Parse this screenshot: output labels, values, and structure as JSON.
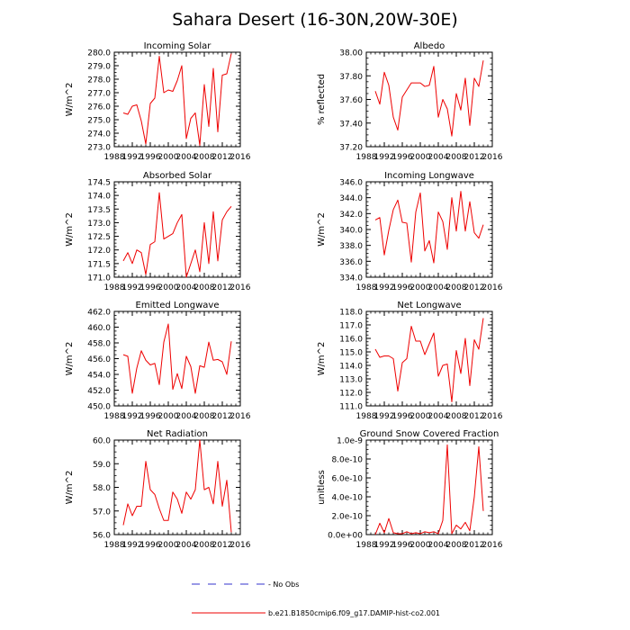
{
  "figure": {
    "title": "Sahara Desert (16-30N,20W-30E)",
    "legend": [
      {
        "label": "- No Obs",
        "style": "dashed",
        "color": "#3333cc"
      },
      {
        "label": "b.e21.B1850cmip6.f09_g17.DAMIP-hist-co2.001",
        "style": "solid",
        "color": "#ee0000"
      }
    ]
  },
  "chart_data": [
    {
      "type": "line",
      "title": "Incoming Solar",
      "ylabel": "W/m^2",
      "xlim": [
        1988,
        2016
      ],
      "ylim": [
        273.0,
        280.0
      ],
      "xticks": [
        1988,
        1992,
        1996,
        2000,
        2004,
        2008,
        2012,
        2016
      ],
      "xtick_labels": [
        "1988",
        "1992",
        "1996",
        "2000",
        "2004",
        "2008",
        "2012",
        "2016"
      ],
      "yticks": [
        273.0,
        274.0,
        275.0,
        276.0,
        277.0,
        278.0,
        279.0,
        280.0
      ],
      "ytick_labels": [
        "273.0",
        "274.0",
        "275.0",
        "276.0",
        "277.0",
        "278.0",
        "279.0",
        "280.0"
      ],
      "series": [
        {
          "color": "#ee0000",
          "x": [
            1990,
            1991,
            1992,
            1993,
            1994,
            1995,
            1996,
            1997,
            1998,
            1999,
            2000,
            2001,
            2002,
            2003,
            2004,
            2005,
            2006,
            2007,
            2008,
            2009,
            2010,
            2011,
            2012,
            2013,
            2014
          ],
          "values": [
            275.5,
            275.4,
            276.0,
            276.1,
            274.9,
            273.2,
            276.2,
            276.6,
            279.7,
            277.0,
            277.2,
            277.1,
            277.9,
            279.0,
            273.6,
            275.1,
            275.5,
            273.1,
            277.6,
            274.5,
            278.8,
            274.1,
            278.3,
            278.4,
            279.9
          ]
        }
      ]
    },
    {
      "type": "line",
      "title": "Albedo",
      "ylabel": "% reflected",
      "xlim": [
        1988,
        2016
      ],
      "ylim": [
        37.2,
        38.0
      ],
      "xticks": [
        1988,
        1992,
        1996,
        2000,
        2004,
        2008,
        2012,
        2016
      ],
      "xtick_labels": [
        "1988",
        "1992",
        "1996",
        "2000",
        "2004",
        "2008",
        "2012",
        "2016"
      ],
      "yticks": [
        37.2,
        37.4,
        37.6,
        37.8,
        38.0
      ],
      "ytick_labels": [
        "37.20",
        "37.40",
        "37.60",
        "37.80",
        "38.00"
      ],
      "series": [
        {
          "color": "#ee0000",
          "x": [
            1990,
            1991,
            1992,
            1993,
            1994,
            1995,
            1996,
            1997,
            1998,
            1999,
            2000,
            2001,
            2002,
            2003,
            2004,
            2005,
            2006,
            2007,
            2008,
            2009,
            2010,
            2011,
            2012,
            2013,
            2014
          ],
          "values": [
            37.67,
            37.56,
            37.83,
            37.72,
            37.45,
            37.34,
            37.62,
            37.68,
            37.74,
            37.74,
            37.74,
            37.71,
            37.72,
            37.88,
            37.45,
            37.6,
            37.52,
            37.29,
            37.65,
            37.51,
            37.78,
            37.38,
            37.78,
            37.71,
            37.93
          ]
        }
      ]
    },
    {
      "type": "line",
      "title": "Absorbed Solar",
      "ylabel": "W/m^2",
      "xlim": [
        1988,
        2016
      ],
      "ylim": [
        171.0,
        174.5
      ],
      "xticks": [
        1988,
        1992,
        1996,
        2000,
        2004,
        2008,
        2012,
        2016
      ],
      "xtick_labels": [
        "1988",
        "1992",
        "1996",
        "2000",
        "2004",
        "2008",
        "2012",
        "2016"
      ],
      "yticks": [
        171.0,
        171.5,
        172.0,
        172.5,
        173.0,
        173.5,
        174.0,
        174.5
      ],
      "ytick_labels": [
        "171.0",
        "171.5",
        "172.0",
        "172.5",
        "173.0",
        "173.5",
        "174.0",
        "174.5"
      ],
      "series": [
        {
          "color": "#ee0000",
          "x": [
            1990,
            1991,
            1992,
            1993,
            1994,
            1995,
            1996,
            1997,
            1998,
            1999,
            2000,
            2001,
            2002,
            2003,
            2004,
            2005,
            2006,
            2007,
            2008,
            2009,
            2010,
            2011,
            2012,
            2013,
            2014
          ],
          "values": [
            171.6,
            171.9,
            171.5,
            172.0,
            171.9,
            171.1,
            172.2,
            172.3,
            174.1,
            172.4,
            172.5,
            172.6,
            173.0,
            173.3,
            171.0,
            171.5,
            172.0,
            171.2,
            173.0,
            171.5,
            173.4,
            171.6,
            173.1,
            173.4,
            173.6
          ]
        }
      ]
    },
    {
      "type": "line",
      "title": "Incoming Longwave",
      "ylabel": "W/m^2",
      "xlim": [
        1988,
        2016
      ],
      "ylim": [
        334.0,
        346.0
      ],
      "xticks": [
        1988,
        1992,
        1996,
        2000,
        2004,
        2008,
        2012,
        2016
      ],
      "xtick_labels": [
        "1988",
        "1992",
        "1996",
        "2000",
        "2004",
        "2008",
        "2012",
        "2016"
      ],
      "yticks": [
        334.0,
        336.0,
        338.0,
        340.0,
        342.0,
        344.0,
        346.0
      ],
      "ytick_labels": [
        "334.0",
        "336.0",
        "338.0",
        "340.0",
        "342.0",
        "344.0",
        "346.0"
      ],
      "series": [
        {
          "color": "#ee0000",
          "x": [
            1990,
            1991,
            1992,
            1993,
            1994,
            1995,
            1996,
            1997,
            1998,
            1999,
            2000,
            2001,
            2002,
            2003,
            2004,
            2005,
            2006,
            2007,
            2008,
            2009,
            2010,
            2011,
            2012,
            2013,
            2014
          ],
          "values": [
            341.2,
            341.5,
            336.8,
            339.9,
            342.5,
            343.7,
            340.9,
            340.8,
            335.9,
            342.2,
            344.6,
            337.3,
            338.6,
            335.8,
            342.2,
            341.0,
            337.5,
            344.0,
            339.8,
            344.8,
            339.8,
            343.5,
            339.6,
            338.9,
            340.6
          ]
        }
      ]
    },
    {
      "type": "line",
      "title": "Emitted Longwave",
      "ylabel": "W/m^2",
      "xlim": [
        1988,
        2016
      ],
      "ylim": [
        450.0,
        462.0
      ],
      "xticks": [
        1988,
        1992,
        1996,
        2000,
        2004,
        2008,
        2012,
        2016
      ],
      "xtick_labels": [
        "1988",
        "1992",
        "1996",
        "2000",
        "2004",
        "2008",
        "2012",
        "2016"
      ],
      "yticks": [
        450.0,
        452.0,
        454.0,
        456.0,
        458.0,
        460.0,
        462.0
      ],
      "ytick_labels": [
        "450.0",
        "452.0",
        "454.0",
        "456.0",
        "458.0",
        "460.0",
        "462.0"
      ],
      "series": [
        {
          "color": "#ee0000",
          "x": [
            1990,
            1991,
            1992,
            1993,
            1994,
            1995,
            1996,
            1997,
            1998,
            1999,
            2000,
            2001,
            2002,
            2003,
            2004,
            2005,
            2006,
            2007,
            2008,
            2009,
            2010,
            2011,
            2012,
            2013,
            2014
          ],
          "values": [
            456.5,
            456.3,
            451.6,
            454.8,
            457.0,
            455.8,
            455.2,
            455.4,
            452.7,
            458.1,
            460.4,
            452.1,
            454.1,
            452.2,
            456.3,
            455.0,
            451.6,
            455.1,
            454.9,
            458.1,
            455.8,
            455.9,
            455.6,
            454.0,
            458.2
          ]
        }
      ]
    },
    {
      "type": "line",
      "title": "Net Longwave",
      "ylabel": "W/m^2",
      "xlim": [
        1988,
        2016
      ],
      "ylim": [
        111.0,
        118.0
      ],
      "xticks": [
        1988,
        1992,
        1996,
        2000,
        2004,
        2008,
        2012,
        2016
      ],
      "xtick_labels": [
        "1988",
        "1992",
        "1996",
        "2000",
        "2004",
        "2008",
        "2012",
        "2016"
      ],
      "yticks": [
        111.0,
        112.0,
        113.0,
        114.0,
        115.0,
        116.0,
        117.0,
        118.0
      ],
      "ytick_labels": [
        "111.0",
        "112.0",
        "113.0",
        "114.0",
        "115.0",
        "116.0",
        "117.0",
        "118.0"
      ],
      "series": [
        {
          "color": "#ee0000",
          "x": [
            1990,
            1991,
            1992,
            1993,
            1994,
            1995,
            1996,
            1997,
            1998,
            1999,
            2000,
            2001,
            2002,
            2003,
            2004,
            2005,
            2006,
            2007,
            2008,
            2009,
            2010,
            2011,
            2012,
            2013,
            2014
          ],
          "values": [
            115.2,
            114.6,
            114.7,
            114.7,
            114.5,
            112.1,
            114.2,
            114.5,
            116.9,
            115.8,
            115.8,
            114.8,
            115.6,
            116.4,
            113.2,
            114.0,
            114.1,
            111.3,
            115.1,
            113.4,
            116.0,
            112.5,
            115.9,
            115.2,
            117.5
          ]
        }
      ]
    },
    {
      "type": "line",
      "title": "Net Radiation",
      "ylabel": "W/m^2",
      "xlim": [
        1988,
        2016
      ],
      "ylim": [
        56.0,
        60.0
      ],
      "xticks": [
        1988,
        1992,
        1996,
        2000,
        2004,
        2008,
        2012,
        2016
      ],
      "xtick_labels": [
        "1988",
        "1992",
        "1996",
        "2000",
        "2004",
        "2008",
        "2012",
        "2016"
      ],
      "yticks": [
        56.0,
        57.0,
        58.0,
        59.0,
        60.0
      ],
      "ytick_labels": [
        "56.0",
        "57.0",
        "58.0",
        "59.0",
        "60.0"
      ],
      "series": [
        {
          "color": "#ee0000",
          "x": [
            1990,
            1991,
            1992,
            1993,
            1994,
            1995,
            1996,
            1997,
            1998,
            1999,
            2000,
            2001,
            2002,
            2003,
            2004,
            2005,
            2006,
            2007,
            2008,
            2009,
            2010,
            2011,
            2012,
            2013,
            2014
          ],
          "values": [
            56.4,
            57.3,
            56.8,
            57.2,
            57.2,
            59.1,
            57.9,
            57.7,
            57.1,
            56.6,
            56.6,
            57.8,
            57.5,
            56.9,
            57.8,
            57.5,
            57.9,
            60.0,
            57.9,
            58.0,
            57.3,
            59.1,
            57.2,
            58.3,
            56.1
          ]
        }
      ]
    },
    {
      "type": "line",
      "title": "Ground Snow Covered Fraction",
      "ylabel": "unitless",
      "xlim": [
        1988,
        2016
      ],
      "ylim": [
        0,
        1e-09
      ],
      "xticks": [
        1988,
        1992,
        1996,
        2000,
        2004,
        2008,
        2012,
        2016
      ],
      "xtick_labels": [
        "1988",
        "1992",
        "1996",
        "2000",
        "2004",
        "2008",
        "2012",
        "2016"
      ],
      "yticks": [
        0,
        2e-10,
        4e-10,
        6e-10,
        8e-10,
        1e-09
      ],
      "ytick_labels": [
        "0.0e+00",
        "2.0e-10",
        "4.0e-10",
        "6.0e-10",
        "8.0e-10",
        "1.0e-9"
      ],
      "series": [
        {
          "color": "#ee0000",
          "x": [
            1990,
            1991,
            1992,
            1993,
            1994,
            1995,
            1996,
            1997,
            1998,
            1999,
            2000,
            2001,
            2002,
            2003,
            2004,
            2005,
            2006,
            2007,
            2008,
            2009,
            2010,
            2011,
            2012,
            2013,
            2014
          ],
          "values": [
            0,
            1.2e-10,
            2e-11,
            1.7e-10,
            2e-11,
            1e-11,
            1e-11,
            3e-11,
            1e-11,
            2e-11,
            1e-11,
            3e-11,
            2e-11,
            3e-11,
            1e-11,
            1.5e-10,
            9.5e-10,
            1e-11,
            1e-10,
            6e-11,
            1.3e-10,
            4e-11,
            4e-10,
            9.3e-10,
            2.5e-10
          ]
        }
      ]
    }
  ]
}
